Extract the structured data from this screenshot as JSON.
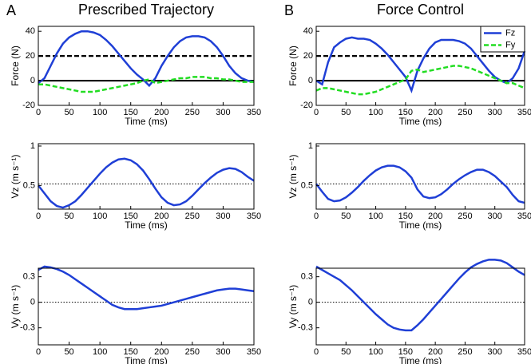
{
  "chart_data": [
    {
      "type": "line",
      "panel_label": "A",
      "title": "Prescribed Trajectory",
      "xlabel": "Time (ms)",
      "ylabel": "Force (N)",
      "x": [
        0,
        10,
        20,
        30,
        40,
        50,
        60,
        70,
        80,
        90,
        100,
        110,
        120,
        130,
        140,
        150,
        160,
        170,
        180,
        190,
        200,
        210,
        220,
        230,
        240,
        250,
        260,
        270,
        280,
        290,
        300,
        310,
        320,
        330,
        340,
        350
      ],
      "xlim": [
        0,
        350
      ],
      "xticks": [
        0,
        50,
        100,
        150,
        200,
        250,
        300,
        350
      ],
      "ylim": [
        -20,
        44
      ],
      "yticks": [
        -20,
        0,
        20,
        40
      ],
      "hlines": [
        {
          "value": 20,
          "style": "dashed"
        },
        {
          "value": 0,
          "style": "solid"
        }
      ],
      "series": [
        {
          "color": "#1f3fd6",
          "style": "solid",
          "values": [
            -2,
            2,
            12,
            22,
            30,
            35,
            38,
            40,
            40,
            39,
            37,
            33,
            28,
            22,
            16,
            10,
            5,
            1,
            -4,
            2,
            12,
            20,
            27,
            32,
            35,
            36,
            36,
            35,
            32,
            27,
            20,
            12,
            6,
            2,
            0,
            -1
          ]
        },
        {
          "color": "#22dd22",
          "style": "dashed",
          "values": [
            -3,
            -3,
            -4,
            -5,
            -6,
            -7,
            -8,
            -9,
            -9,
            -9,
            -8,
            -7,
            -6,
            -5,
            -4,
            -3,
            -2,
            0,
            1,
            -2,
            -1,
            0,
            1,
            2,
            2,
            3,
            3,
            3,
            2,
            2,
            1,
            1,
            0,
            -1,
            -1,
            -1
          ]
        }
      ]
    },
    {
      "type": "line",
      "panel_label": "B",
      "title": "Force Control",
      "xlabel": "Time (ms)",
      "ylabel": "Force (N)",
      "x": [
        0,
        10,
        20,
        30,
        40,
        50,
        60,
        70,
        80,
        90,
        100,
        110,
        120,
        130,
        140,
        150,
        160,
        170,
        180,
        190,
        200,
        210,
        220,
        230,
        240,
        250,
        260,
        270,
        280,
        290,
        300,
        310,
        320,
        330,
        340,
        350
      ],
      "xlim": [
        0,
        350
      ],
      "xticks": [
        0,
        50,
        100,
        150,
        200,
        250,
        300,
        350
      ],
      "ylim": [
        -20,
        44
      ],
      "yticks": [
        -20,
        0,
        20,
        40
      ],
      "hlines": [
        {
          "value": 20,
          "style": "dashed"
        },
        {
          "value": 0,
          "style": "solid"
        }
      ],
      "legend": "upper right",
      "series": [
        {
          "name": "Fz",
          "color": "#1f3fd6",
          "style": "solid",
          "values": [
            0,
            -3,
            15,
            27,
            31,
            34,
            35,
            34,
            34,
            33,
            30,
            26,
            21,
            15,
            9,
            3,
            -8,
            8,
            18,
            26,
            31,
            33,
            33,
            33,
            32,
            30,
            26,
            20,
            14,
            8,
            3,
            0,
            -2,
            2,
            10,
            24
          ]
        },
        {
          "name": "Fy",
          "color": "#22dd22",
          "style": "dashed",
          "values": [
            -8,
            -6,
            -6,
            -7,
            -8,
            -9,
            -10,
            -11,
            -11,
            -10,
            -9,
            -7,
            -5,
            -3,
            -1,
            1,
            8,
            9,
            7,
            8,
            9,
            10,
            11,
            12,
            12,
            11,
            10,
            8,
            6,
            4,
            2,
            0,
            -2,
            -2,
            -4,
            -6
          ]
        }
      ]
    },
    {
      "type": "line",
      "xlabel": "Time (ms)",
      "ylabel": "Vz (m s⁻¹)",
      "x": [
        0,
        10,
        20,
        30,
        40,
        50,
        60,
        70,
        80,
        90,
        100,
        110,
        120,
        130,
        140,
        150,
        160,
        170,
        180,
        190,
        200,
        210,
        220,
        230,
        240,
        250,
        260,
        270,
        280,
        290,
        300,
        310,
        320,
        330,
        340,
        350
      ],
      "xlim": [
        0,
        350
      ],
      "xticks": [
        0,
        50,
        100,
        150,
        200,
        250,
        300,
        350
      ],
      "ylim": [
        0.2,
        1.03
      ],
      "yticks": [
        0.5,
        1
      ],
      "hlines": [
        {
          "value": 0.52,
          "style": "dotted"
        }
      ],
      "series": [
        {
          "color": "#1f3fd6",
          "style": "solid",
          "values": [
            0.5,
            0.4,
            0.3,
            0.24,
            0.22,
            0.25,
            0.3,
            0.38,
            0.47,
            0.56,
            0.65,
            0.73,
            0.79,
            0.83,
            0.84,
            0.82,
            0.77,
            0.69,
            0.58,
            0.46,
            0.35,
            0.28,
            0.25,
            0.26,
            0.3,
            0.37,
            0.45,
            0.53,
            0.6,
            0.66,
            0.7,
            0.72,
            0.71,
            0.67,
            0.61,
            0.56
          ]
        }
      ]
    },
    {
      "type": "line",
      "xlabel": "Time (ms)",
      "ylabel": "Vz (m s⁻¹)",
      "x": [
        0,
        10,
        20,
        30,
        40,
        50,
        60,
        70,
        80,
        90,
        100,
        110,
        120,
        130,
        140,
        150,
        160,
        170,
        180,
        190,
        200,
        210,
        220,
        230,
        240,
        250,
        260,
        270,
        280,
        290,
        300,
        310,
        320,
        330,
        340,
        350
      ],
      "xlim": [
        0,
        350
      ],
      "xticks": [
        0,
        50,
        100,
        150,
        200,
        250,
        300,
        350
      ],
      "ylim": [
        0.2,
        1.03
      ],
      "yticks": [
        0.5,
        1
      ],
      "hlines": [
        {
          "value": 0.52,
          "style": "dotted"
        }
      ],
      "series": [
        {
          "color": "#1f3fd6",
          "style": "solid",
          "values": [
            0.52,
            0.42,
            0.33,
            0.3,
            0.31,
            0.35,
            0.41,
            0.48,
            0.56,
            0.63,
            0.69,
            0.73,
            0.75,
            0.75,
            0.73,
            0.68,
            0.6,
            0.45,
            0.36,
            0.34,
            0.35,
            0.39,
            0.45,
            0.52,
            0.58,
            0.63,
            0.67,
            0.7,
            0.7,
            0.67,
            0.62,
            0.55,
            0.48,
            0.38,
            0.3,
            0.28
          ]
        }
      ]
    },
    {
      "type": "line",
      "xlabel": "Time (ms)",
      "ylabel": "Vy (m s⁻¹)",
      "x": [
        0,
        10,
        20,
        30,
        40,
        50,
        60,
        70,
        80,
        90,
        100,
        110,
        120,
        130,
        140,
        150,
        160,
        170,
        180,
        190,
        200,
        210,
        220,
        230,
        240,
        250,
        260,
        270,
        280,
        290,
        300,
        310,
        320,
        330,
        340,
        350
      ],
      "xlim": [
        0,
        350
      ],
      "xticks": [
        0,
        50,
        100,
        150,
        200,
        250,
        300,
        350
      ],
      "ylim": [
        -0.5,
        0.4
      ],
      "yticks": [
        -0.3,
        0,
        0.3
      ],
      "hlines": [
        {
          "value": 0,
          "style": "dotted"
        }
      ],
      "series": [
        {
          "color": "#1f3fd6",
          "style": "solid",
          "values": [
            0.38,
            0.42,
            0.41,
            0.39,
            0.36,
            0.32,
            0.27,
            0.22,
            0.17,
            0.12,
            0.07,
            0.02,
            -0.03,
            -0.06,
            -0.08,
            -0.08,
            -0.08,
            -0.07,
            -0.06,
            -0.05,
            -0.04,
            -0.02,
            0,
            0.02,
            0.04,
            0.06,
            0.08,
            0.1,
            0.12,
            0.14,
            0.15,
            0.16,
            0.16,
            0.15,
            0.14,
            0.13
          ]
        }
      ]
    },
    {
      "type": "line",
      "xlabel": "Time (ms)",
      "ylabel": "Vy (m s⁻¹)",
      "x": [
        0,
        10,
        20,
        30,
        40,
        50,
        60,
        70,
        80,
        90,
        100,
        110,
        120,
        130,
        140,
        150,
        160,
        170,
        180,
        190,
        200,
        210,
        220,
        230,
        240,
        250,
        260,
        270,
        280,
        290,
        300,
        310,
        320,
        330,
        340,
        350
      ],
      "xlim": [
        0,
        350
      ],
      "xticks": [
        0,
        50,
        100,
        150,
        200,
        250,
        300,
        350
      ],
      "ylim": [
        -0.5,
        0.4
      ],
      "yticks": [
        -0.3,
        0,
        0.3
      ],
      "hlines": [
        {
          "value": 0,
          "style": "dotted"
        }
      ],
      "series": [
        {
          "color": "#1f3fd6",
          "style": "solid",
          "values": [
            0.42,
            0.38,
            0.34,
            0.3,
            0.26,
            0.2,
            0.14,
            0.07,
            0,
            -0.07,
            -0.14,
            -0.2,
            -0.26,
            -0.3,
            -0.32,
            -0.33,
            -0.33,
            -0.27,
            -0.2,
            -0.12,
            -0.04,
            0.04,
            0.12,
            0.2,
            0.28,
            0.35,
            0.41,
            0.45,
            0.48,
            0.5,
            0.5,
            0.49,
            0.46,
            0.41,
            0.36,
            0.32
          ]
        }
      ]
    }
  ]
}
